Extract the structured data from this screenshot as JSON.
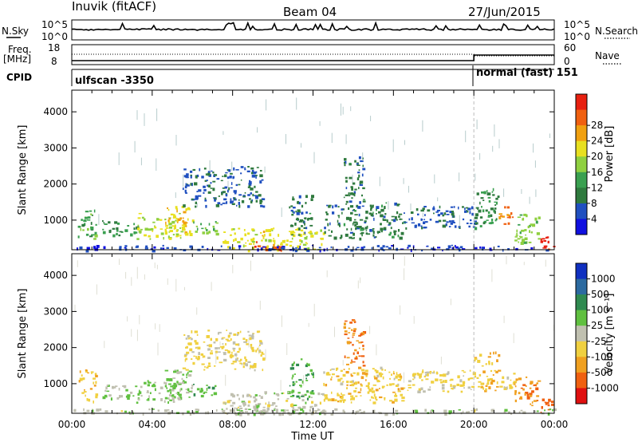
{
  "header": {
    "station": "Inuvik (fitACF)",
    "beam": "Beam 04",
    "date": "27/Jun/2015"
  },
  "status_panels": {
    "nsky_label": "N.Sky",
    "nsky_ticks": [
      "10^5",
      "10^0"
    ],
    "nsearch_label": "N.Search",
    "nsearch_ticks": [
      "10^5",
      "10^0"
    ],
    "freq_label": "Freq.",
    "freq_unit": "[MHz]",
    "freq_ticks": [
      "18",
      "8"
    ],
    "nave_label": "Nave",
    "nave_ticks": [
      "60",
      "0"
    ],
    "cpid_label": "CPID",
    "cpid_segments": [
      {
        "name": "ulfscan -3350",
        "start_hour": 0,
        "end_hour": 20
      },
      {
        "name": "normal (fast) 151",
        "start_hour": 20,
        "end_hour": 24
      }
    ],
    "mode_change_hour": 20
  },
  "chart_data": [
    {
      "type": "heatmap",
      "title": "",
      "parameter": "Power",
      "ylabel": "Slant Range [km]",
      "xlabel": "Time UT",
      "xlim": [
        0,
        24
      ],
      "ylim": [
        180,
        4600
      ],
      "xticks": [
        "00:00",
        "04:00",
        "08:00",
        "12:00",
        "16:00",
        "20:00",
        "00:00"
      ],
      "yticks": [
        1000,
        2000,
        3000,
        4000
      ],
      "colorbar": {
        "label": "Power [dB]",
        "range": [
          0,
          30
        ],
        "ticks": [
          "4",
          "8",
          "12",
          "16",
          "20",
          "24",
          "28"
        ],
        "colors": [
          "#1010e0",
          "#2050c0",
          "#2f7a3e",
          "#3aa050",
          "#8fd040",
          "#e8e020",
          "#f0a010",
          "#f06010",
          "#e82010"
        ]
      },
      "features": [
        {
          "t": [
            0.3,
            1.2
          ],
          "r": [
            500,
            1400
          ],
          "level": 12
        },
        {
          "t": [
            1.5,
            3.2
          ],
          "r": [
            600,
            1000
          ],
          "level": 10
        },
        {
          "t": [
            3.2,
            5.5
          ],
          "r": [
            500,
            1200
          ],
          "level": 16
        },
        {
          "t": [
            4.6,
            6.0
          ],
          "r": [
            600,
            1400
          ],
          "level": 20
        },
        {
          "t": [
            6.0,
            7.2
          ],
          "r": [
            600,
            1000
          ],
          "level": 14
        },
        {
          "t": [
            5.5,
            9.5
          ],
          "r": [
            1400,
            2500
          ],
          "level": 6
        },
        {
          "t": [
            7.5,
            12.5
          ],
          "r": [
            180,
            800
          ],
          "level": 18
        },
        {
          "t": [
            9.0,
            10.5
          ],
          "r": [
            180,
            450
          ],
          "level": 26
        },
        {
          "t": [
            10.8,
            12.0
          ],
          "r": [
            600,
            1700
          ],
          "level": 8
        },
        {
          "t": [
            13.5,
            14.5
          ],
          "r": [
            1500,
            2800
          ],
          "level": 8
        },
        {
          "t": [
            12.5,
            16.5
          ],
          "r": [
            500,
            1500
          ],
          "level": 8
        },
        {
          "t": [
            16.5,
            20.0
          ],
          "r": [
            800,
            1400
          ],
          "level": 6
        },
        {
          "t": [
            20.0,
            21.2
          ],
          "r": [
            800,
            1900
          ],
          "level": 10
        },
        {
          "t": [
            21.2,
            22.0
          ],
          "r": [
            900,
            1400
          ],
          "level": 24
        },
        {
          "t": [
            22.0,
            23.2
          ],
          "r": [
            400,
            1200
          ],
          "level": 14
        },
        {
          "t": [
            23.2,
            24.0
          ],
          "r": [
            200,
            600
          ],
          "level": 28
        },
        {
          "t": [
            0.0,
            24.0
          ],
          "r": [
            180,
            320
          ],
          "level": 4
        }
      ]
    },
    {
      "type": "heatmap",
      "title": "",
      "parameter": "Velocity",
      "ylabel": "Slant Range [km]",
      "xlabel": "Time UT",
      "xlim": [
        0,
        24
      ],
      "ylim": [
        180,
        4600
      ],
      "xticks": [
        "00:00",
        "04:00",
        "08:00",
        "12:00",
        "16:00",
        "20:00",
        "00:00"
      ],
      "yticks": [
        1000,
        2000,
        3000,
        4000
      ],
      "colorbar": {
        "label": "Velocity [m s⁻¹]",
        "range": [
          -1200,
          1200
        ],
        "ticks": [
          "1000",
          "500",
          "100",
          "25",
          "-25",
          "-100",
          "-500",
          "-1000"
        ],
        "colors": [
          "#1030c0",
          "#2c6aa0",
          "#2f8a50",
          "#60c040",
          "#c0c0b0",
          "#f0d040",
          "#f0a020",
          "#f06010",
          "#e01010"
        ]
      },
      "features": [
        {
          "t": [
            0.3,
            1.2
          ],
          "r": [
            500,
            1400
          ],
          "level": -300
        },
        {
          "t": [
            1.5,
            3.2
          ],
          "r": [
            600,
            1000
          ],
          "level": 80
        },
        {
          "t": [
            3.2,
            5.5
          ],
          "r": [
            500,
            1200
          ],
          "level": 200
        },
        {
          "t": [
            4.6,
            6.0
          ],
          "r": [
            600,
            1400
          ],
          "level": 150
        },
        {
          "t": [
            6.0,
            7.2
          ],
          "r": [
            600,
            1000
          ],
          "level": 300
        },
        {
          "t": [
            5.5,
            9.5
          ],
          "r": [
            1400,
            2500
          ],
          "level": -200
        },
        {
          "t": [
            7.5,
            12.5
          ],
          "r": [
            180,
            800
          ],
          "level": 0
        },
        {
          "t": [
            9.0,
            10.5
          ],
          "r": [
            180,
            450
          ],
          "level": 60
        },
        {
          "t": [
            10.8,
            12.0
          ],
          "r": [
            600,
            1700
          ],
          "level": 400
        },
        {
          "t": [
            13.5,
            14.5
          ],
          "r": [
            1500,
            2800
          ],
          "level": -700
        },
        {
          "t": [
            12.5,
            16.5
          ],
          "r": [
            500,
            1500
          ],
          "level": -300
        },
        {
          "t": [
            16.5,
            20.0
          ],
          "r": [
            800,
            1400
          ],
          "level": -200
        },
        {
          "t": [
            20.0,
            21.2
          ],
          "r": [
            800,
            1900
          ],
          "level": -400
        },
        {
          "t": [
            21.2,
            22.0
          ],
          "r": [
            900,
            1400
          ],
          "level": -200
        },
        {
          "t": [
            22.0,
            23.2
          ],
          "r": [
            400,
            1200
          ],
          "level": -600
        },
        {
          "t": [
            23.2,
            24.0
          ],
          "r": [
            200,
            600
          ],
          "level": -800
        },
        {
          "t": [
            0.0,
            24.0
          ],
          "r": [
            180,
            320
          ],
          "level": 40
        }
      ]
    }
  ]
}
